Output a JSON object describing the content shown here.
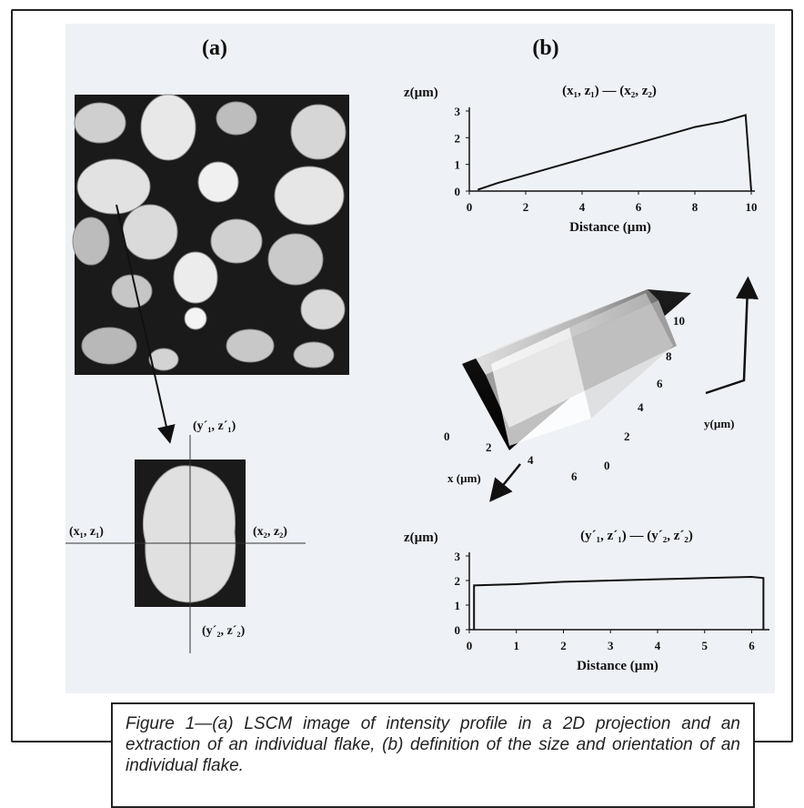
{
  "panels": {
    "a": {
      "label": "(a)"
    },
    "b": {
      "label": "(b)"
    }
  },
  "flake": {
    "label_top": "(y´₁, z´₁)",
    "label_left": "(x₁, z₁)",
    "label_right": "(x₂, z₂)",
    "label_bottom": "(y´₂, z´₂)"
  },
  "surface_plot": {
    "x_label": "x (µm)",
    "y_label": "y(µm)",
    "x_ticks": [
      "0",
      "2",
      "4",
      "6"
    ],
    "y_ticks": [
      "0",
      "2",
      "4",
      "6",
      "8",
      "10"
    ]
  },
  "chart_data": [
    {
      "type": "line",
      "title": "(x₁, z₁) — (x₂, z₂)",
      "xlabel": "Distance (µm)",
      "ylabel": "z(µm)",
      "xlim": [
        0,
        10
      ],
      "ylim": [
        0,
        3
      ],
      "x_ticks": [
        0,
        2,
        4,
        6,
        8,
        10
      ],
      "y_ticks": [
        0,
        1,
        2,
        3
      ],
      "x": [
        0.3,
        1.0,
        2.0,
        3.0,
        4.0,
        5.0,
        6.0,
        7.0,
        8.0,
        9.0,
        9.8,
        10.0
      ],
      "y": [
        0.05,
        0.3,
        0.6,
        0.9,
        1.2,
        1.5,
        1.8,
        2.1,
        2.4,
        2.6,
        2.85,
        0.0
      ]
    },
    {
      "type": "line",
      "title": "(y´₁, z´₁) — (y´₂, z´₂)",
      "xlabel": "Distance (µm)",
      "ylabel": "z(µm)",
      "xlim": [
        0,
        6.3
      ],
      "ylim": [
        0,
        3
      ],
      "x_ticks": [
        0,
        1,
        2,
        3,
        4,
        5,
        6
      ],
      "y_ticks": [
        0,
        1,
        2,
        3
      ],
      "x": [
        0.1,
        0.1,
        1.0,
        2.0,
        3.0,
        4.0,
        5.0,
        6.0,
        6.25,
        6.25
      ],
      "y": [
        0.0,
        1.8,
        1.85,
        1.95,
        2.0,
        2.05,
        2.1,
        2.15,
        2.1,
        0.0
      ]
    }
  ],
  "caption": "Figure 1—(a) LSCM image of intensity profile in a 2D projection and an extraction of an individual flake, (b) definition of the size and orientation of an individual flake."
}
